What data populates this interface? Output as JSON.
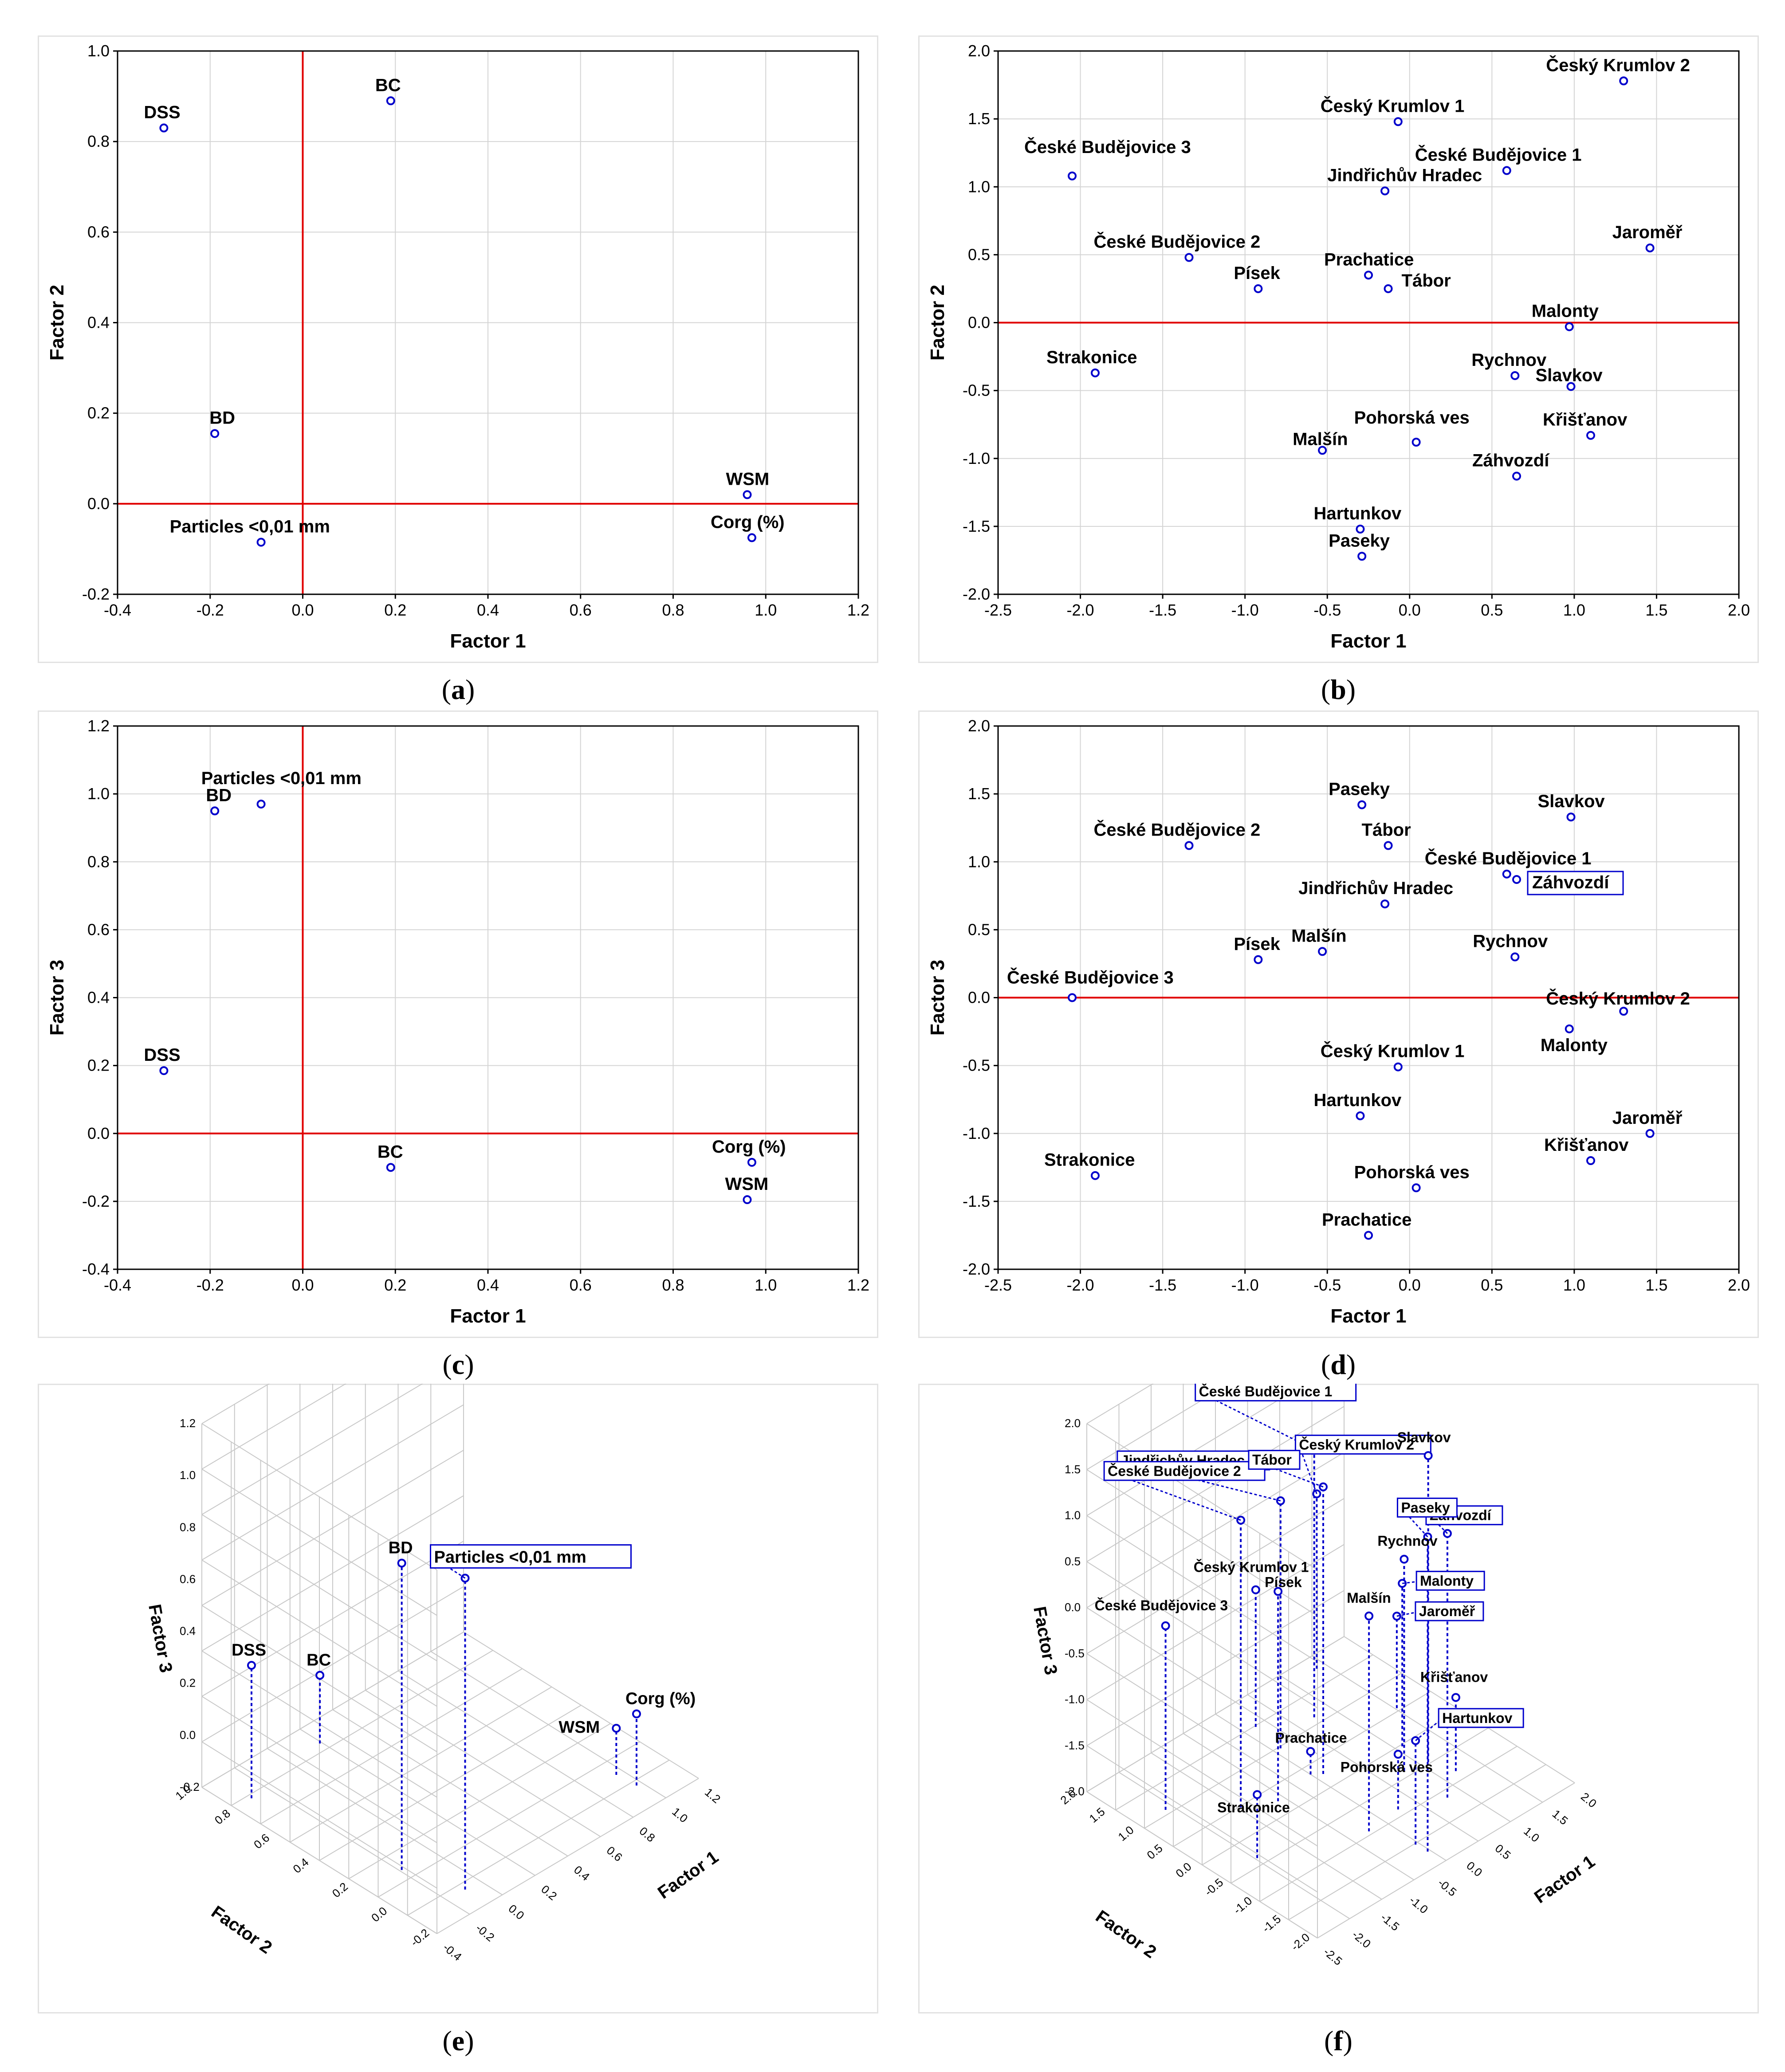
{
  "chart_data": [
    {
      "id": "a",
      "type": "scatter",
      "caption": "a",
      "xlabel": "Factor 1",
      "ylabel": "Factor 2",
      "xlim": [
        -0.4,
        1.2
      ],
      "ylim": [
        -0.2,
        1.0
      ],
      "xticks": [
        -0.4,
        -0.2,
        0.0,
        0.2,
        0.4,
        0.6,
        0.8,
        1.0,
        1.2
      ],
      "yticks": [
        -0.2,
        0.0,
        0.2,
        0.4,
        0.6,
        0.8,
        1.0
      ],
      "tick_labels_x": [
        "-0.4",
        "-0.2",
        "0.0",
        "0.2",
        "0.4",
        "0.6",
        "0.8",
        "1.0",
        "1.2"
      ],
      "tick_labels_y": [
        "-0.2",
        "0.0",
        "0.2",
        "0.4",
        "0.6",
        "0.8",
        "1.0"
      ],
      "points": [
        {
          "label": "DSS",
          "x": -0.3,
          "y": 0.83
        },
        {
          "label": "BC",
          "x": 0.19,
          "y": 0.89
        },
        {
          "label": "BD",
          "x": -0.19,
          "y": 0.155
        },
        {
          "label": "WSM",
          "x": 0.96,
          "y": 0.02
        },
        {
          "label": "Corg (%)",
          "x": 0.97,
          "y": -0.075
        },
        {
          "label": "Particles <0,01 mm",
          "x": -0.09,
          "y": -0.085
        }
      ]
    },
    {
      "id": "b",
      "type": "scatter",
      "caption": "b",
      "xlabel": "Factor 1",
      "ylabel": "Factor 2",
      "xlim": [
        -2.5,
        2.0
      ],
      "ylim": [
        -2.0,
        2.0
      ],
      "xticks": [
        -2.5,
        -2.0,
        -1.5,
        -1.0,
        -0.5,
        0.0,
        0.5,
        1.0,
        1.5,
        2.0
      ],
      "yticks": [
        -2.0,
        -1.5,
        -1.0,
        -0.5,
        0.0,
        0.5,
        1.0,
        1.5,
        2.0
      ],
      "tick_labels_x": [
        "-2.5",
        "-2.0",
        "-1.5",
        "-1.0",
        "-0.5",
        "0.0",
        "0.5",
        "1.0",
        "1.5",
        "2.0"
      ],
      "tick_labels_y": [
        "-2.0",
        "-1.5",
        "-1.0",
        "-0.5",
        "0.0",
        "0.5",
        "1.0",
        "1.5",
        "2.0"
      ],
      "points": [
        {
          "label": "Český Krumlov 2",
          "x": 1.3,
          "y": 1.78
        },
        {
          "label": "Český Krumlov 1",
          "x": -0.07,
          "y": 1.48
        },
        {
          "label": "České Budějovice 3",
          "x": -2.05,
          "y": 1.08
        },
        {
          "label": "České Budějovice 1",
          "x": 0.59,
          "y": 1.12
        },
        {
          "label": "Jindřichův Hradec",
          "x": -0.15,
          "y": 0.97
        },
        {
          "label": "Jaroměř",
          "x": 1.46,
          "y": 0.55
        },
        {
          "label": "České Budějovice 2",
          "x": -1.34,
          "y": 0.48
        },
        {
          "label": "Prachatice",
          "x": -0.25,
          "y": 0.35
        },
        {
          "label": "Písek",
          "x": -0.92,
          "y": 0.25
        },
        {
          "label": "Tábor",
          "x": -0.13,
          "y": 0.25
        },
        {
          "label": "Malonty",
          "x": 0.97,
          "y": -0.03
        },
        {
          "label": "Strakonice",
          "x": -1.91,
          "y": -0.37
        },
        {
          "label": "Rychnov",
          "x": 0.64,
          "y": -0.39
        },
        {
          "label": "Slavkov",
          "x": 0.98,
          "y": -0.47
        },
        {
          "label": "Křišťanov",
          "x": 1.1,
          "y": -0.83
        },
        {
          "label": "Malšín",
          "x": -0.53,
          "y": -0.94
        },
        {
          "label": "Pohorská ves",
          "x": 0.04,
          "y": -0.88
        },
        {
          "label": "Záhvozdí",
          "x": 0.65,
          "y": -1.13
        },
        {
          "label": "Hartunkov",
          "x": -0.3,
          "y": -1.52
        },
        {
          "label": "Paseky",
          "x": -0.29,
          "y": -1.72
        }
      ]
    },
    {
      "id": "c",
      "type": "scatter",
      "caption": "c",
      "xlabel": "Factor 1",
      "ylabel": "Factor 3",
      "xlim": [
        -0.4,
        1.2
      ],
      "ylim": [
        -0.4,
        1.2
      ],
      "xticks": [
        -0.4,
        -0.2,
        0.0,
        0.2,
        0.4,
        0.6,
        0.8,
        1.0,
        1.2
      ],
      "yticks": [
        -0.4,
        -0.2,
        0.0,
        0.2,
        0.4,
        0.6,
        0.8,
        1.0,
        1.2
      ],
      "tick_labels_x": [
        "-0.4",
        "-0.2",
        "0.0",
        "0.2",
        "0.4",
        "0.6",
        "0.8",
        "1.0",
        "1.2"
      ],
      "tick_labels_y": [
        "-0.4",
        "-0.2",
        "0.0",
        "0.2",
        "0.4",
        "0.6",
        "0.8",
        "1.0",
        "1.2"
      ],
      "points": [
        {
          "label": "Particles <0,01 mm",
          "x": -0.09,
          "y": 0.97
        },
        {
          "label": "BD",
          "x": -0.19,
          "y": 0.95
        },
        {
          "label": "DSS",
          "x": -0.3,
          "y": 0.185
        },
        {
          "label": "BC",
          "x": 0.19,
          "y": -0.1
        },
        {
          "label": "Corg (%)",
          "x": 0.97,
          "y": -0.085
        },
        {
          "label": "WSM",
          "x": 0.96,
          "y": -0.195
        }
      ]
    },
    {
      "id": "d",
      "type": "scatter",
      "caption": "d",
      "xlabel": "Factor 1",
      "ylabel": "Factor 3",
      "xlim": [
        -2.5,
        2.0
      ],
      "ylim": [
        -2.0,
        2.0
      ],
      "xticks": [
        -2.5,
        -2.0,
        -1.5,
        -1.0,
        -0.5,
        0.0,
        0.5,
        1.0,
        1.5,
        2.0
      ],
      "yticks": [
        -2.0,
        -1.5,
        -1.0,
        -0.5,
        0.0,
        0.5,
        1.0,
        1.5,
        2.0
      ],
      "tick_labels_x": [
        "-2.5",
        "-2.0",
        "-1.5",
        "-1.0",
        "-0.5",
        "0.0",
        "0.5",
        "1.0",
        "1.5",
        "2.0"
      ],
      "tick_labels_y": [
        "-2.0",
        "-1.5",
        "-1.0",
        "-0.5",
        "0.0",
        "0.5",
        "1.0",
        "1.5",
        "2.0"
      ],
      "points": [
        {
          "label": "Paseky",
          "x": -0.29,
          "y": 1.42
        },
        {
          "label": "Slavkov",
          "x": 0.98,
          "y": 1.33
        },
        {
          "label": "České Budějovice 2",
          "x": -1.34,
          "y": 1.12
        },
        {
          "label": "Tábor",
          "x": -0.13,
          "y": 1.12
        },
        {
          "label": "České Budějovice 1",
          "x": 0.59,
          "y": 0.91
        },
        {
          "label": "Záhvozdí",
          "x": 0.65,
          "y": 0.87
        },
        {
          "label": "Jindřichův Hradec",
          "x": -0.15,
          "y": 0.69
        },
        {
          "label": "Písek",
          "x": -0.92,
          "y": 0.28
        },
        {
          "label": "Malšín",
          "x": -0.53,
          "y": 0.34
        },
        {
          "label": "Rychnov",
          "x": 0.64,
          "y": 0.3
        },
        {
          "label": "České Budějovice 3",
          "x": -2.05,
          "y": 0.0
        },
        {
          "label": "Český Krumlov 2",
          "x": 1.3,
          "y": -0.1
        },
        {
          "label": "Malonty",
          "x": 0.97,
          "y": -0.23
        },
        {
          "label": "Český Krumlov 1",
          "x": -0.07,
          "y": -0.51
        },
        {
          "label": "Hartunkov",
          "x": -0.3,
          "y": -0.87
        },
        {
          "label": "Jaroměř",
          "x": 1.46,
          "y": -1.0
        },
        {
          "label": "Křišťanov",
          "x": 1.1,
          "y": -1.2
        },
        {
          "label": "Strakonice",
          "x": -1.91,
          "y": -1.31
        },
        {
          "label": "Pohorská ves",
          "x": 0.04,
          "y": -1.4
        },
        {
          "label": "Prachatice",
          "x": -0.25,
          "y": -1.75
        }
      ]
    },
    {
      "id": "e",
      "type": "scatter3d",
      "caption": "e",
      "xlabel": "Factor 1",
      "ylabel": "Factor 2",
      "zlabel": "Factor 3",
      "xlim": [
        -0.4,
        1.2
      ],
      "ylim": [
        -0.2,
        1.0
      ],
      "zlim": [
        -0.4,
        1.2
      ],
      "tick_labels_x": [
        "-0.4",
        "-0.2",
        "0.0",
        "0.2",
        "0.4",
        "0.6",
        "0.8",
        "1.0",
        "1.2"
      ],
      "tick_labels_y": [
        "-0.2",
        "0.0",
        "0.2",
        "0.4",
        "0.6",
        "0.8",
        "1.0"
      ],
      "tick_labels_z": [
        "-0.2",
        "0.0",
        "0.2",
        "0.4",
        "0.6",
        "0.8",
        "1.0",
        "1.2"
      ],
      "points": [
        {
          "label": "DSS",
          "x": -0.3,
          "y": 0.83,
          "z": 0.185
        },
        {
          "label": "BC",
          "x": 0.19,
          "y": 0.89,
          "z": -0.1
        },
        {
          "label": "BD",
          "x": -0.19,
          "y": 0.155,
          "z": 0.95
        },
        {
          "label": "Particles <0,01 mm",
          "x": -0.09,
          "y": -0.085,
          "z": 0.97
        },
        {
          "label": "WSM",
          "x": 0.96,
          "y": 0.02,
          "z": -0.195
        },
        {
          "label": "Corg (%)",
          "x": 0.97,
          "y": -0.075,
          "z": -0.085
        }
      ]
    },
    {
      "id": "f",
      "type": "scatter3d",
      "caption": "f",
      "xlabel": "Factor 1",
      "ylabel": "Factor 2",
      "zlabel": "Factor 3",
      "xlim": [
        -2.5,
        2.0
      ],
      "ylim": [
        -2.0,
        2.0
      ],
      "zlim": [
        -2.0,
        2.0
      ],
      "tick_labels_x": [
        "-2.5",
        "-2.0",
        "-1.5",
        "-1.0",
        "-0.5",
        "0.0",
        "0.5",
        "1.0",
        "1.5",
        "2.0"
      ],
      "tick_labels_y": [
        "-2.0",
        "-1.5",
        "-1.0",
        "-0.5",
        "0.0",
        "0.5",
        "1.0",
        "1.5",
        "2.0"
      ],
      "tick_labels_z": [
        "-2.0",
        "-1.5",
        "-1.0",
        "-0.5",
        "0.0",
        "0.5",
        "1.0",
        "1.5",
        "2.0"
      ],
      "points": [
        {
          "label": "České Budějovice 1",
          "x": 0.59,
          "y": 1.12,
          "z": 0.91
        },
        {
          "label": "Jindřichův Hradec",
          "x": -0.15,
          "y": 0.97,
          "z": 0.69
        },
        {
          "label": "Český Krumlov 2",
          "x": 1.3,
          "y": 1.78,
          "z": -0.1
        },
        {
          "label": "České Budějovice 2",
          "x": -1.34,
          "y": 0.48,
          "z": 1.12
        },
        {
          "label": "Slavkov",
          "x": 0.98,
          "y": -0.47,
          "z": 1.33
        },
        {
          "label": "Tábor",
          "x": -0.13,
          "y": 0.25,
          "z": 1.12
        },
        {
          "label": "Záhvozdí",
          "x": 0.65,
          "y": -1.13,
          "z": 0.87
        },
        {
          "label": "Paseky",
          "x": -0.29,
          "y": -1.72,
          "z": 1.42
        },
        {
          "label": "Rychnov",
          "x": 0.64,
          "y": -0.39,
          "z": 0.3
        },
        {
          "label": "Malonty",
          "x": 0.97,
          "y": -0.03,
          "z": -0.23
        },
        {
          "label": "Český Krumlov 1",
          "x": -0.07,
          "y": 1.48,
          "z": -0.51
        },
        {
          "label": "České Budějovice 3",
          "x": -2.05,
          "y": 1.08,
          "z": 0.0
        },
        {
          "label": "Písek",
          "x": -0.92,
          "y": 0.25,
          "z": 0.28
        },
        {
          "label": "Malšín",
          "x": -0.53,
          "y": -0.94,
          "z": 0.34
        },
        {
          "label": "Jaroměř",
          "x": 1.46,
          "y": 0.55,
          "z": -1.0
        },
        {
          "label": "Křišťanov",
          "x": 1.1,
          "y": -0.83,
          "z": -1.2
        },
        {
          "label": "Prachatice",
          "x": -0.25,
          "y": 0.35,
          "z": -1.75
        },
        {
          "label": "Hartunkov",
          "x": -0.3,
          "y": -1.52,
          "z": -0.87
        },
        {
          "label": "Strakonice",
          "x": -1.91,
          "y": -0.37,
          "z": -1.31
        },
        {
          "label": "Pohorská ves",
          "x": 0.04,
          "y": -0.88,
          "z": -1.4
        }
      ],
      "boxed_labels": [
        "České Budějovice 1",
        "Jindřichův Hradec",
        "Český Krumlov 2",
        "České Budějovice 2",
        "Tábor",
        "Záhvozdí",
        "Paseky",
        "Malonty",
        "Jaroměř",
        "Hartunkov"
      ]
    }
  ]
}
